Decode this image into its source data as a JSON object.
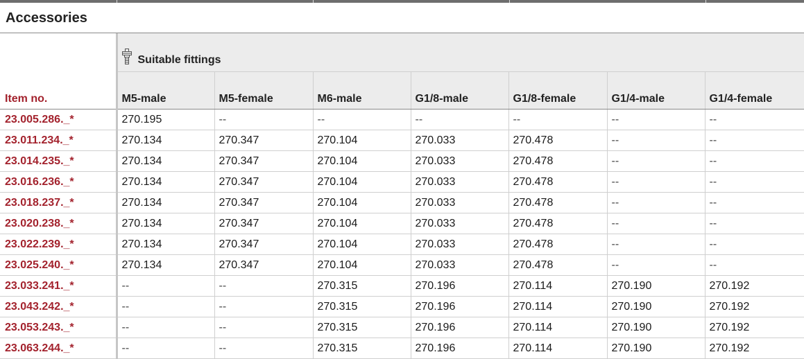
{
  "section": {
    "title": "Accessories"
  },
  "table": {
    "group_icon": "fitting-icon",
    "group_label": "Suitable fittings",
    "item_header": "Item no.",
    "columns": [
      "M5-male",
      "M5-female",
      "M6-male",
      "G1/8-male",
      "G1/8-female",
      "G1/4-male",
      "G1/4-female"
    ],
    "rows": [
      {
        "item": "23.005.286._*",
        "cells": [
          "270.195",
          "--",
          "--",
          "--",
          "--",
          "--",
          "--"
        ]
      },
      {
        "item": "23.011.234._*",
        "cells": [
          "270.134",
          "270.347",
          "270.104",
          "270.033",
          "270.478",
          "--",
          "--"
        ]
      },
      {
        "item": "23.014.235._*",
        "cells": [
          "270.134",
          "270.347",
          "270.104",
          "270.033",
          "270.478",
          "--",
          "--"
        ]
      },
      {
        "item": "23.016.236._*",
        "cells": [
          "270.134",
          "270.347",
          "270.104",
          "270.033",
          "270.478",
          "--",
          "--"
        ]
      },
      {
        "item": "23.018.237._*",
        "cells": [
          "270.134",
          "270.347",
          "270.104",
          "270.033",
          "270.478",
          "--",
          "--"
        ]
      },
      {
        "item": "23.020.238._*",
        "cells": [
          "270.134",
          "270.347",
          "270.104",
          "270.033",
          "270.478",
          "--",
          "--"
        ]
      },
      {
        "item": "23.022.239._*",
        "cells": [
          "270.134",
          "270.347",
          "270.104",
          "270.033",
          "270.478",
          "--",
          "--"
        ]
      },
      {
        "item": "23.025.240._*",
        "cells": [
          "270.134",
          "270.347",
          "270.104",
          "270.033",
          "270.478",
          "--",
          "--"
        ]
      },
      {
        "item": "23.033.241._*",
        "cells": [
          "--",
          "--",
          "270.315",
          "270.196",
          "270.114",
          "270.190",
          "270.192"
        ]
      },
      {
        "item": "23.043.242._*",
        "cells": [
          "--",
          "--",
          "270.315",
          "270.196",
          "270.114",
          "270.190",
          "270.192"
        ]
      },
      {
        "item": "23.053.243._*",
        "cells": [
          "--",
          "--",
          "270.315",
          "270.196",
          "270.114",
          "270.190",
          "270.192"
        ]
      },
      {
        "item": "23.063.244._*",
        "cells": [
          "--",
          "--",
          "270.315",
          "270.196",
          "270.114",
          "270.190",
          "270.192"
        ]
      }
    ]
  },
  "colors": {
    "item_text": "#a3222d",
    "header_bg": "#ececec",
    "grid_line": "#cfcfcf"
  }
}
